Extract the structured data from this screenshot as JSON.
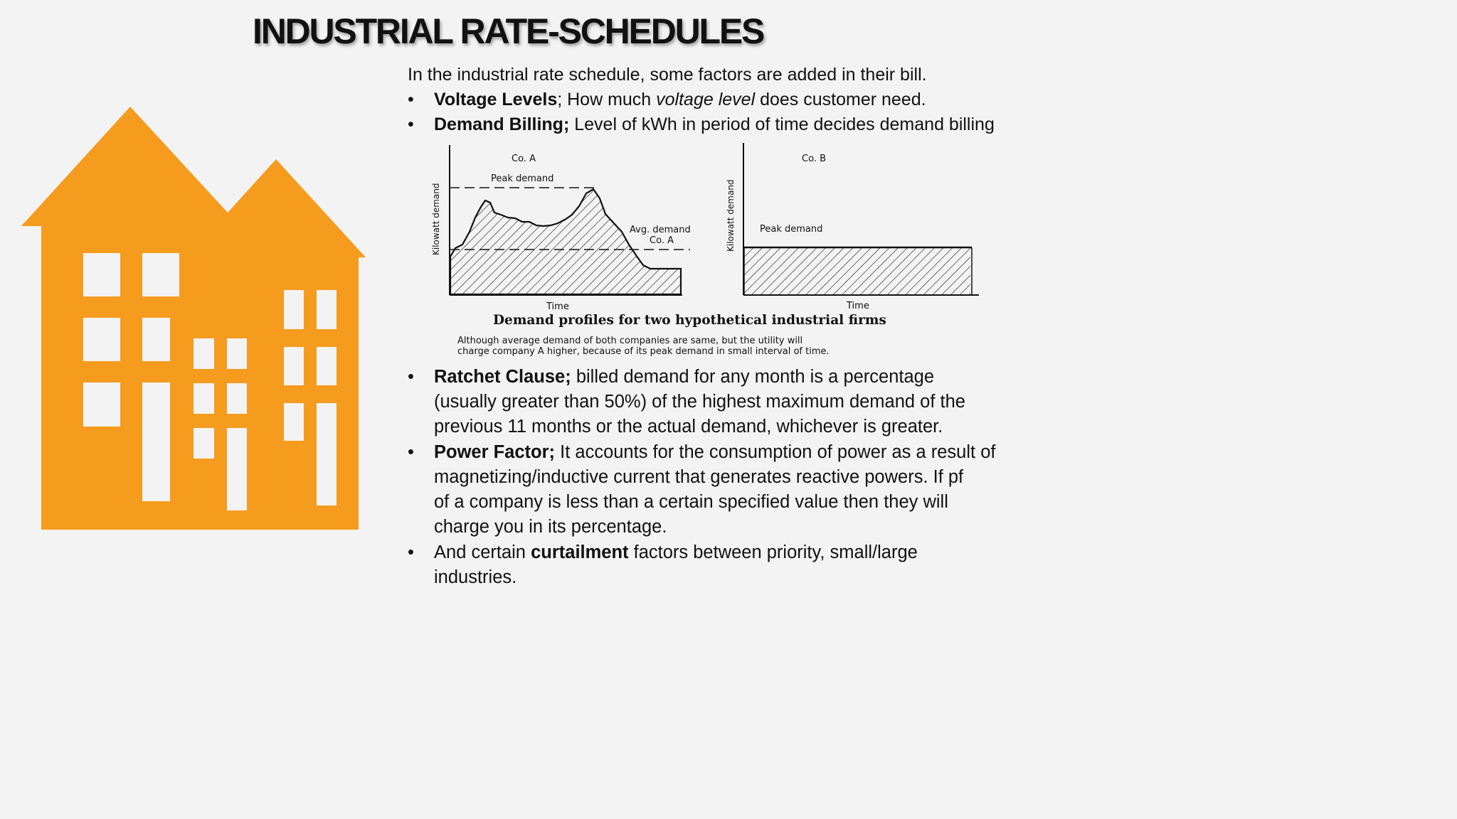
{
  "title": "INDUSTRIAL RATE-SCHEDULES",
  "intro": "In the industrial rate schedule, some factors are added in their bill.",
  "bullets_top": [
    {
      "bold": "Voltage Levels",
      "text_a": "; How much ",
      "italic": "voltage level",
      "text_b": " does customer need."
    },
    {
      "bold": "Demand Billing;",
      "text": " Level of kWh in period of time decides demand billing"
    }
  ],
  "figure": {
    "chart_a": {
      "label": "Co. A",
      "peak_label": "Peak demand",
      "avg_label": "Avg. demand",
      "avg_sub": "Co. A",
      "ylabel": "Kilowatt demand",
      "xlabel": "Time"
    },
    "chart_b": {
      "label": "Co. B",
      "peak_label": "Peak demand",
      "ylabel": "Kilowatt demand",
      "xlabel": "Time"
    },
    "caption": "Demand profiles for two hypothetical industrial firms",
    "note_line1": "Although average demand of both companies are same, but the utility will",
    "note_line2": "charge company A higher, because of its peak demand in small interval of time."
  },
  "bullets_bottom": [
    {
      "bold": "Ratchet Clause;",
      "lines": [
        " billed demand for any month is a percentage",
        "(usually greater than 50%) of the highest maximum demand of the",
        "previous 11 months or the actual demand, whichever is greater."
      ]
    },
    {
      "bold": "Power Factor;",
      "lines": [
        " It accounts for the consumption of power as a result of",
        "magnetizing/inductive current that generates reactive powers. If pf",
        "of a company is less than a certain specified value then they will",
        "charge you in its percentage."
      ]
    },
    {
      "pre": "And certain ",
      "bold": "curtailment",
      "lines": [
        " factors between priority, small/large",
        "industries."
      ]
    }
  ],
  "bullet_char": "•",
  "colors": {
    "building": "#f59c1e",
    "background": "#f3f3f3"
  }
}
